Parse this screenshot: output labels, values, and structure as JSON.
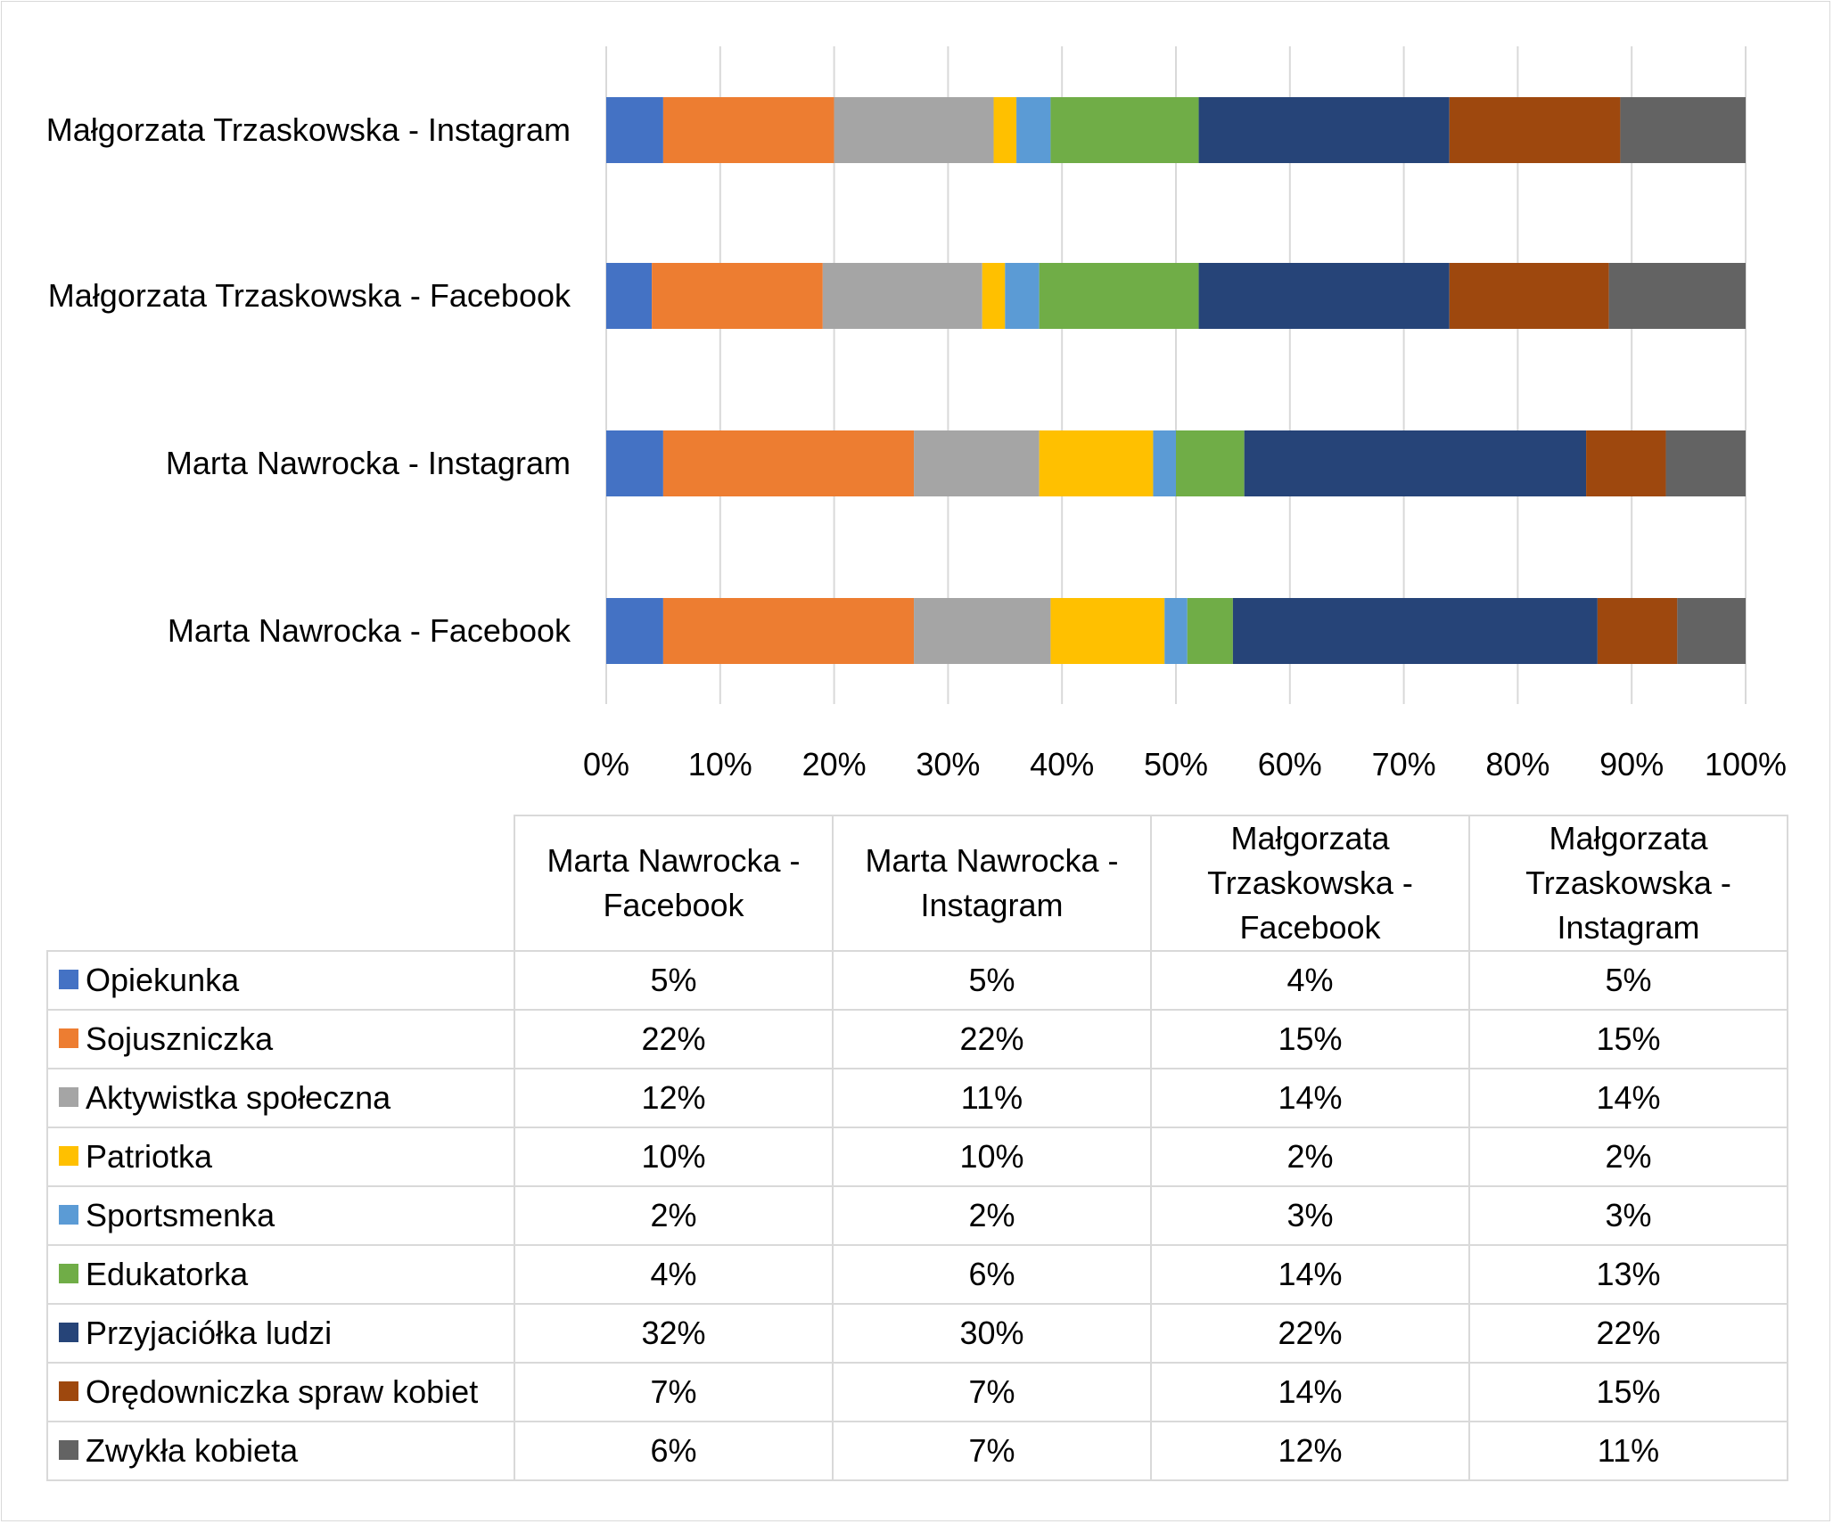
{
  "chart_data": {
    "type": "bar",
    "orientation": "horizontal",
    "stacked": true,
    "normalized_percent": true,
    "categories": [
      "Marta Nawrocka - Facebook",
      "Marta Nawrocka - Instagram",
      "Małgorzata Trzaskowska - Facebook",
      "Małgorzata Trzaskowska - Instagram"
    ],
    "series": [
      {
        "name": "Opiekunka",
        "color": "#4472c4",
        "values": [
          5,
          5,
          4,
          5
        ]
      },
      {
        "name": "Sojuszniczka",
        "color": "#ed7d31",
        "values": [
          22,
          22,
          15,
          15
        ]
      },
      {
        "name": "Aktywistka społeczna",
        "color": "#a5a5a5",
        "values": [
          12,
          11,
          14,
          14
        ]
      },
      {
        "name": "Patriotka",
        "color": "#ffc000",
        "values": [
          10,
          10,
          2,
          2
        ]
      },
      {
        "name": "Sportsmenka",
        "color": "#5b9bd5",
        "values": [
          2,
          2,
          3,
          3
        ]
      },
      {
        "name": "Edukatorka",
        "color": "#70ad47",
        "values": [
          4,
          6,
          14,
          13
        ]
      },
      {
        "name": "Przyjaciółka ludzi",
        "color": "#264478",
        "values": [
          32,
          30,
          22,
          22
        ]
      },
      {
        "name": "Orędowniczka spraw kobiet",
        "color": "#9e480e",
        "values": [
          7,
          7,
          14,
          15
        ]
      },
      {
        "name": "Zwykła kobieta",
        "color": "#636363",
        "values": [
          6,
          7,
          12,
          11
        ]
      }
    ],
    "xlim": [
      0,
      100
    ],
    "x_ticks": [
      "0%",
      "10%",
      "20%",
      "30%",
      "40%",
      "50%",
      "60%",
      "70%",
      "80%",
      "90%",
      "100%"
    ],
    "grid": true,
    "legend": "data-table-below",
    "title": "",
    "xlabel": "",
    "ylabel": ""
  },
  "table": {
    "headers": [
      "Marta Nawrocka - Facebook",
      "Marta Nawrocka - Instagram",
      "Małgorzata Trzaskowska - Facebook",
      "Małgorzata Trzaskowska - Instagram"
    ],
    "rows": [
      {
        "label": "Opiekunka",
        "cells": [
          "5%",
          "5%",
          "4%",
          "5%"
        ]
      },
      {
        "label": "Sojuszniczka",
        "cells": [
          "22%",
          "22%",
          "15%",
          "15%"
        ]
      },
      {
        "label": "Aktywistka społeczna",
        "cells": [
          "12%",
          "11%",
          "14%",
          "14%"
        ]
      },
      {
        "label": "Patriotka",
        "cells": [
          "10%",
          "10%",
          "2%",
          "2%"
        ]
      },
      {
        "label": "Sportsmenka",
        "cells": [
          "2%",
          "2%",
          "3%",
          "3%"
        ]
      },
      {
        "label": "Edukatorka",
        "cells": [
          "4%",
          "6%",
          "14%",
          "13%"
        ]
      },
      {
        "label": "Przyjaciółka ludzi",
        "cells": [
          "32%",
          "30%",
          "22%",
          "22%"
        ]
      },
      {
        "label": "Orędowniczka spraw kobiet",
        "cells": [
          "7%",
          "7%",
          "14%",
          "15%"
        ]
      },
      {
        "label": "Zwykła kobieta",
        "cells": [
          "6%",
          "7%",
          "12%",
          "11%"
        ]
      }
    ]
  }
}
